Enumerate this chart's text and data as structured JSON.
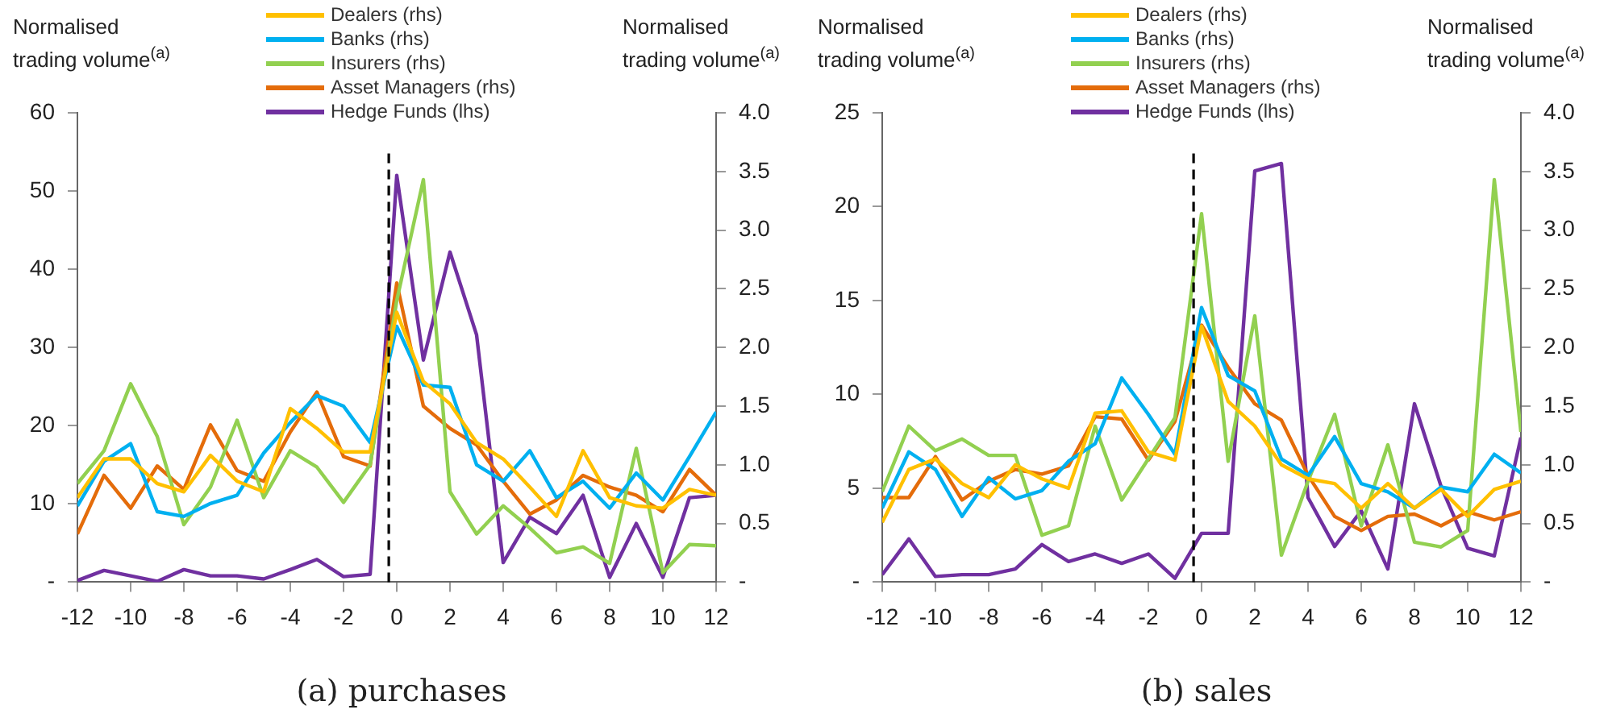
{
  "chart_data": [
    {
      "type": "line",
      "title": "(a) purchases",
      "ylabel": "Normalised trading volume$^{(a)}$",
      "y2label": "Normalised trading volume$^{(a)}$",
      "legend": "top",
      "marker": "none",
      "line_style": "solid",
      "x": [
        -12,
        -11,
        -10,
        -9,
        -8,
        -7,
        -6,
        -5,
        -4,
        -3,
        -2,
        -1,
        0,
        1,
        2,
        3,
        4,
        5,
        6,
        7,
        8,
        9,
        10,
        11,
        12
      ],
      "xlim": [
        -12,
        12
      ],
      "xticks": [
        -12,
        -10,
        -8,
        -6,
        -4,
        -2,
        0,
        2,
        4,
        6,
        8,
        10,
        12
      ],
      "ylim": [
        0,
        60
      ],
      "yticks": [
        {
          "value": 0,
          "label": "-"
        },
        10,
        20,
        30,
        40,
        50,
        60
      ],
      "y2lim": [
        0,
        4
      ],
      "y2ticks": [
        {
          "value": 0,
          "label": "-"
        },
        0.5,
        {
          "value": 1,
          "label": "1.0"
        },
        1.5,
        {
          "value": 2,
          "label": "2.0"
        },
        2.5,
        {
          "value": 3,
          "label": "3.0"
        },
        3.5,
        {
          "value": 4,
          "label": "4.0"
        }
      ],
      "ref_lines": [
        {
          "axis": "x",
          "value": -0.3,
          "color": "#000000",
          "line_style": "dashed"
        }
      ],
      "series": [
        {
          "name": "Dealers (rhs)",
          "color": "#ffc000",
          "axis": "y2",
          "values": [
            0.72,
            1.05,
            1.05,
            0.84,
            0.77,
            1.08,
            0.86,
            0.77,
            1.48,
            1.31,
            1.11,
            1.11,
            2.3,
            1.71,
            1.52,
            1.19,
            1.05,
            0.81,
            0.56,
            1.12,
            0.72,
            0.65,
            0.63,
            0.79,
            0.74
          ]
        },
        {
          "name": "Banks (rhs)",
          "color": "#00b0f0",
          "axis": "y2",
          "values": [
            0.65,
            1.03,
            1.18,
            0.6,
            0.56,
            0.67,
            0.74,
            1.1,
            1.36,
            1.59,
            1.5,
            1.19,
            2.18,
            1.68,
            1.66,
            1.0,
            0.86,
            1.12,
            0.72,
            0.86,
            0.63,
            0.93,
            0.7,
            1.07,
            1.45
          ]
        },
        {
          "name": "Insurers (rhs)",
          "color": "#92d050",
          "axis": "y2",
          "values": [
            0.84,
            1.12,
            1.69,
            1.24,
            0.49,
            0.81,
            1.38,
            0.72,
            1.12,
            0.98,
            0.68,
            1.0,
            2.4,
            3.43,
            0.77,
            0.41,
            0.65,
            0.46,
            0.25,
            0.3,
            0.16,
            1.14,
            0.08,
            0.32,
            0.31
          ]
        },
        {
          "name": "Asset Managers (rhs)",
          "color": "#e46c0a",
          "axis": "y2",
          "values": [
            0.41,
            0.91,
            0.63,
            0.99,
            0.79,
            1.34,
            0.95,
            0.86,
            1.28,
            1.62,
            1.07,
            0.99,
            2.55,
            1.5,
            1.31,
            1.17,
            0.86,
            0.58,
            0.7,
            0.91,
            0.81,
            0.74,
            0.6,
            0.96,
            0.74
          ]
        },
        {
          "name": "Hedge Funds (lhs)",
          "color": "#7030a0",
          "axis": "y",
          "values": [
            0.2,
            1.5,
            0.8,
            0.1,
            1.6,
            0.8,
            0.8,
            0.4,
            1.6,
            2.9,
            0.7,
            1.0,
            52.0,
            28.4,
            42.2,
            31.6,
            2.5,
            8.3,
            6.2,
            11.1,
            0.6,
            7.5,
            0.6,
            10.8,
            11.1
          ]
        }
      ]
    },
    {
      "type": "line",
      "title": "(b) sales",
      "ylabel": "Normalised trading volume$^{(a)}$",
      "y2label": "Normalised trading volume$^{(a)}$",
      "legend": "top",
      "marker": "none",
      "line_style": "solid",
      "x": [
        -12,
        -11,
        -10,
        -9,
        -8,
        -7,
        -6,
        -5,
        -4,
        -3,
        -2,
        -1,
        0,
        1,
        2,
        3,
        4,
        5,
        6,
        7,
        8,
        9,
        10,
        11,
        12
      ],
      "xlim": [
        -12,
        12
      ],
      "xticks": [
        -12,
        -10,
        -8,
        -6,
        -4,
        -2,
        0,
        2,
        4,
        6,
        8,
        10,
        12
      ],
      "ylim": [
        0,
        25
      ],
      "yticks": [
        {
          "value": 0,
          "label": "-"
        },
        5,
        10,
        15,
        20,
        25
      ],
      "y2lim": [
        0,
        4
      ],
      "y2ticks": [
        {
          "value": 0,
          "label": "-"
        },
        0.5,
        {
          "value": 1,
          "label": "1.0"
        },
        1.5,
        {
          "value": 2,
          "label": "2.0"
        },
        2.5,
        {
          "value": 3,
          "label": "3.0"
        },
        3.5,
        {
          "value": 4,
          "label": "4.0"
        }
      ],
      "ref_lines": [
        {
          "axis": "x",
          "value": -0.3,
          "color": "#000000",
          "line_style": "dashed"
        }
      ],
      "series": [
        {
          "name": "Dealers (rhs)",
          "color": "#ffc000",
          "axis": "y2",
          "values": [
            0.51,
            0.96,
            1.05,
            0.84,
            0.72,
            1.0,
            0.88,
            0.8,
            1.44,
            1.46,
            1.11,
            1.04,
            2.18,
            1.54,
            1.33,
            1.0,
            0.88,
            0.84,
            0.63,
            0.84,
            0.63,
            0.79,
            0.56,
            0.79,
            0.86
          ]
        },
        {
          "name": "Banks (rhs)",
          "color": "#00b0f0",
          "axis": "y2",
          "values": [
            0.63,
            1.11,
            0.96,
            0.56,
            0.89,
            0.71,
            0.78,
            1.03,
            1.18,
            1.74,
            1.43,
            1.09,
            2.34,
            1.76,
            1.63,
            1.05,
            0.91,
            1.24,
            0.84,
            0.77,
            0.63,
            0.81,
            0.77,
            1.09,
            0.93
          ]
        },
        {
          "name": "Insurers (rhs)",
          "color": "#92d050",
          "axis": "y2",
          "values": [
            0.77,
            1.33,
            1.12,
            1.22,
            1.08,
            1.08,
            0.4,
            0.48,
            1.33,
            0.7,
            1.05,
            1.4,
            3.14,
            1.03,
            2.27,
            0.23,
            0.86,
            1.43,
            0.48,
            1.17,
            0.34,
            0.3,
            0.44,
            3.43,
            1.28
          ]
        },
        {
          "name": "Asset Managers (rhs)",
          "color": "#e46c0a",
          "axis": "y2",
          "values": [
            0.72,
            0.72,
            1.07,
            0.7,
            0.86,
            0.96,
            0.92,
            0.99,
            1.41,
            1.39,
            1.04,
            1.37,
            2.19,
            1.83,
            1.52,
            1.38,
            0.91,
            0.56,
            0.44,
            0.56,
            0.58,
            0.48,
            0.6,
            0.53,
            0.6
          ]
        },
        {
          "name": "Hedge Funds (lhs)",
          "color": "#7030a0",
          "axis": "y",
          "values": [
            0.4,
            2.3,
            0.3,
            0.4,
            0.4,
            0.7,
            2.0,
            1.1,
            1.5,
            1.0,
            1.5,
            0.2,
            2.6,
            2.6,
            21.9,
            22.3,
            4.5,
            1.9,
            3.8,
            0.7,
            9.5,
            5.1,
            1.8,
            1.4,
            7.7
          ]
        }
      ]
    }
  ]
}
